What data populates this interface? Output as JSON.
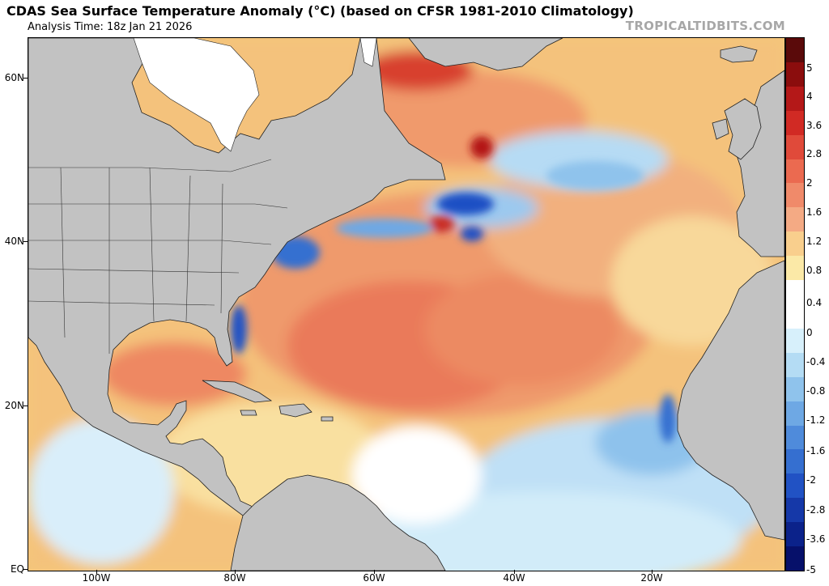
{
  "header": {
    "title": "CDAS Sea Surface Temperature Anomaly (°C) (based on CFSR 1981-2010 Climatology)",
    "analysis_time": "Analysis Time: 18z Jan 21 2026",
    "brand": "TROPICALTIDBITS.COM"
  },
  "map": {
    "region": "North Atlantic Ocean",
    "lat_labels": [
      "60N",
      "40N",
      "20N",
      "EQ"
    ],
    "lon_labels": [
      "100W",
      "80W",
      "60W",
      "40W",
      "20W"
    ]
  },
  "colorbar": {
    "labels": [
      "5",
      "4",
      "3.6",
      "2.8",
      "2",
      "1.6",
      "1.2",
      "0.8",
      "0.4",
      "0",
      "-0.4",
      "-0.8",
      "-1.2",
      "-1.6",
      "-2",
      "-2.8",
      "-3.6",
      "-5"
    ],
    "colors": [
      "#5a0a0a",
      "#8b0d0d",
      "#b41818",
      "#d12a24",
      "#e04a3a",
      "#eb6a50",
      "#f08a6a",
      "#f4aa84",
      "#f9cf8d",
      "#fbe9a7",
      "#ffffff",
      "#ffffff",
      "#d7f0fb",
      "#b4dcf4",
      "#8fc3ec",
      "#6ea8e4",
      "#4f8bdb",
      "#356fd0",
      "#2152c4",
      "#1538a8",
      "#0b228a",
      "#06106a"
    ]
  },
  "colors": {
    "land": "#c2c2c2",
    "ice": "#ffffff",
    "water_default": "#f3c77a"
  }
}
